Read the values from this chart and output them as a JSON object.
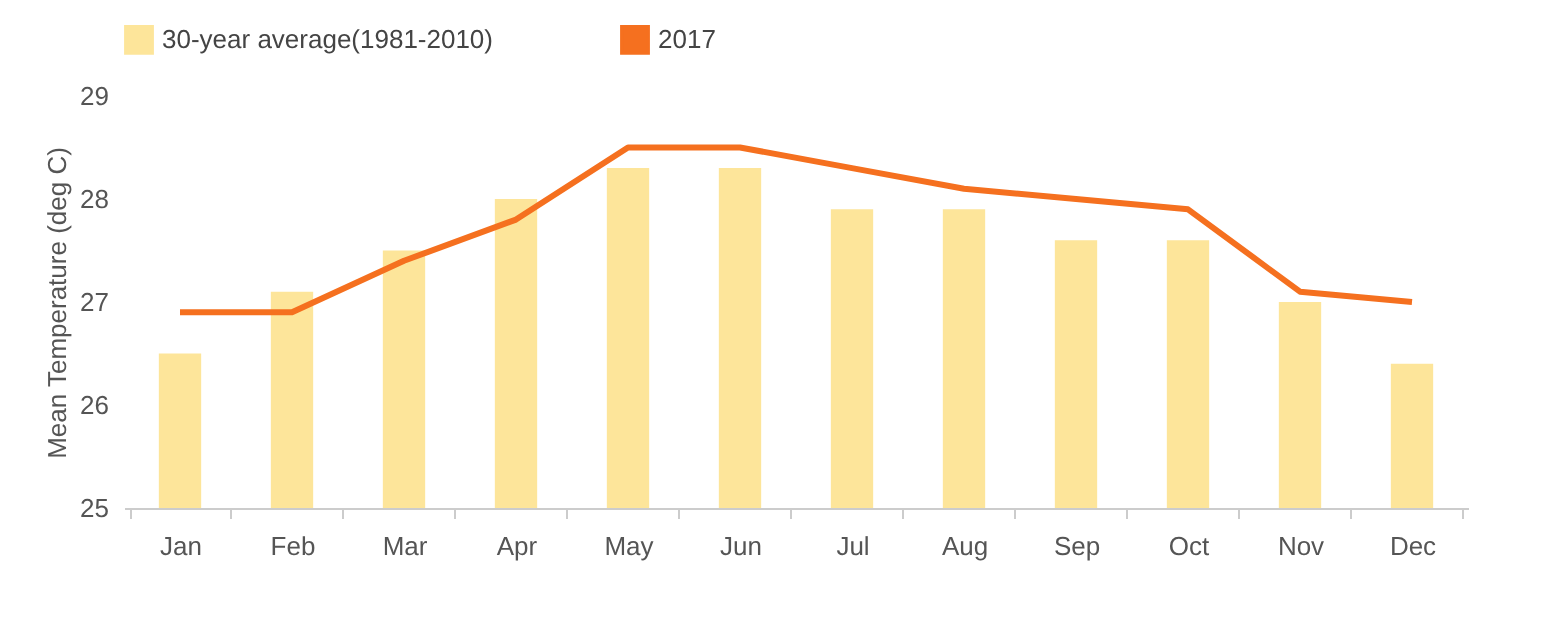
{
  "chart_data": {
    "type": "bar",
    "ylabel": "Mean Temperature (deg C)",
    "categories": [
      "Jan",
      "Feb",
      "Mar",
      "Apr",
      "May",
      "Jun",
      "Jul",
      "Aug",
      "Sep",
      "Oct",
      "Nov",
      "Dec"
    ],
    "series": [
      {
        "name": "30-year average(1981-2010)",
        "type": "bar",
        "color": "#fde59a",
        "values": [
          26.5,
          27.1,
          27.5,
          28.0,
          28.3,
          28.3,
          27.9,
          27.9,
          27.6,
          27.6,
          27.0,
          26.4
        ]
      },
      {
        "name": "2017",
        "type": "line",
        "color": "#f5701f",
        "values": [
          26.9,
          26.9,
          27.4,
          27.8,
          28.5,
          28.5,
          28.3,
          28.1,
          28.0,
          27.9,
          27.1,
          27.0
        ]
      }
    ],
    "ylim": [
      25,
      29
    ],
    "yticks": [
      25,
      26,
      27,
      28,
      29
    ],
    "grid": false,
    "legend": "top",
    "marker": "none",
    "line_style": "solid"
  }
}
